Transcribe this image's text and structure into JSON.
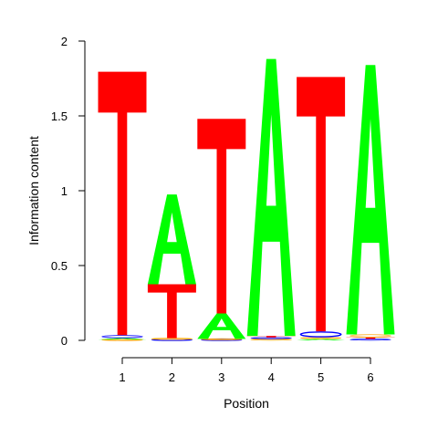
{
  "chart_data": {
    "type": "sequence-logo",
    "xlabel": "Position",
    "ylabel": "Information content",
    "ylim": [
      0,
      2
    ],
    "yticks": [
      "0",
      "0.5",
      "1",
      "1.5",
      "2"
    ],
    "positions": [
      "1",
      "2",
      "3",
      "4",
      "5",
      "6"
    ],
    "colors": {
      "A": "#00ff00",
      "C": "#0000ff",
      "G": "#ffa500",
      "T": "#ff0000"
    },
    "columns": [
      {
        "position": "1",
        "letters": [
          {
            "base": "G",
            "height": 0.005
          },
          {
            "base": "A",
            "height": 0.01
          },
          {
            "base": "C",
            "height": 0.02
          },
          {
            "base": "T",
            "height": 1.76
          }
        ]
      },
      {
        "position": "2",
        "letters": [
          {
            "base": "C",
            "height": 0.005
          },
          {
            "base": "G",
            "height": 0.01
          },
          {
            "base": "T",
            "height": 0.36
          },
          {
            "base": "A",
            "height": 0.6
          }
        ]
      },
      {
        "position": "3",
        "letters": [
          {
            "base": "C",
            "height": 0.005
          },
          {
            "base": "G",
            "height": 0.005
          },
          {
            "base": "A",
            "height": 0.17
          },
          {
            "base": "T",
            "height": 1.3
          }
        ]
      },
      {
        "position": "4",
        "letters": [
          {
            "base": "G",
            "height": 0.01
          },
          {
            "base": "C",
            "height": 0.01
          },
          {
            "base": "T",
            "height": 0.01
          },
          {
            "base": "A",
            "height": 1.85
          }
        ]
      },
      {
        "position": "5",
        "letters": [
          {
            "base": "A",
            "height": 0.01
          },
          {
            "base": "G",
            "height": 0.01
          },
          {
            "base": "C",
            "height": 0.04
          },
          {
            "base": "T",
            "height": 1.7
          }
        ]
      },
      {
        "position": "6",
        "letters": [
          {
            "base": "C",
            "height": 0.01
          },
          {
            "base": "T",
            "height": 0.01
          },
          {
            "base": "G",
            "height": 0.02
          },
          {
            "base": "A",
            "height": 1.8
          }
        ]
      }
    ]
  }
}
